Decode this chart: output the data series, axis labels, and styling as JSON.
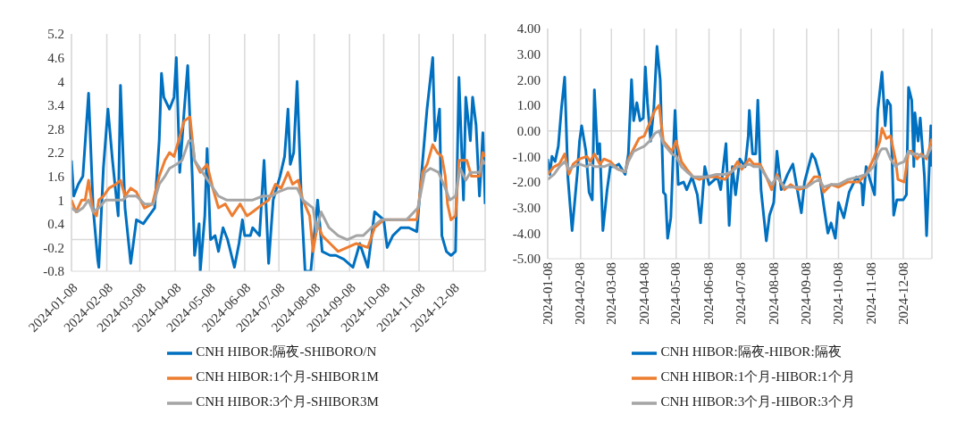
{
  "chart_data": [
    {
      "type": "line",
      "xlim": [
        "2024-01-08",
        "2025-01-05"
      ],
      "xticks": [
        "2024-01-08",
        "2024-02-08",
        "2024-03-08",
        "2024-04-08",
        "2024-05-08",
        "2024-06-08",
        "2024-07-08",
        "2024-08-08",
        "2024-09-08",
        "2024-10-08",
        "2024-11-08",
        "2024-12-08"
      ],
      "ylim": [
        -0.8,
        5.2
      ],
      "yticks": [
        -0.8,
        -0.2,
        0.4,
        1,
        1.6,
        2.2,
        2.8,
        3.4,
        4,
        4.6,
        5.2
      ],
      "grid": "x",
      "legend": "bottom",
      "line_style": "solid",
      "ref_lines": [
        {
          "axis": "y",
          "value": 0,
          "color": "#d9d9d9"
        }
      ],
      "series": [
        {
          "name": "CNH HIBOR:隔夜-SHIBORO/N",
          "color": "#0070c0",
          "x": [
            "2024-01-08",
            "2024-01-10",
            "2024-01-14",
            "2024-01-18",
            "2024-01-23",
            "2024-01-27",
            "2024-01-31",
            "2024-02-01",
            "2024-02-05",
            "2024-02-09",
            "2024-02-13",
            "2024-02-18",
            "2024-02-20",
            "2024-02-24",
            "2024-02-29",
            "2024-03-05",
            "2024-03-11",
            "2024-03-16",
            "2024-03-21",
            "2024-03-25",
            "2024-03-27",
            "2024-03-29",
            "2024-04-03",
            "2024-04-07",
            "2024-04-09",
            "2024-04-11",
            "2024-04-12",
            "2024-04-16",
            "2024-04-19",
            "2024-04-23",
            "2024-04-25",
            "2024-04-29",
            "2024-04-30",
            "2024-05-04",
            "2024-05-06",
            "2024-05-09",
            "2024-05-13",
            "2024-05-16",
            "2024-05-20",
            "2024-05-24",
            "2024-05-30",
            "2024-06-03",
            "2024-06-06",
            "2024-06-08",
            "2024-06-13",
            "2024-06-15",
            "2024-06-21",
            "2024-06-25",
            "2024-06-29",
            "2024-07-03",
            "2024-07-09",
            "2024-07-13",
            "2024-07-16",
            "2024-07-18",
            "2024-07-21",
            "2024-07-24",
            "2024-07-28",
            "2024-07-31",
            "2024-08-05",
            "2024-08-11",
            "2024-08-15",
            "2024-08-22",
            "2024-08-27",
            "2024-09-03",
            "2024-09-11",
            "2024-09-17",
            "2024-09-24",
            "2024-09-30",
            "2024-10-08",
            "2024-10-11",
            "2024-10-16",
            "2024-10-23",
            "2024-10-30",
            "2024-11-06",
            "2024-11-10",
            "2024-11-15",
            "2024-11-20",
            "2024-11-22",
            "2024-11-26",
            "2024-11-28",
            "2024-12-02",
            "2024-12-06",
            "2024-12-10",
            "2024-12-13",
            "2024-12-17",
            "2024-12-19",
            "2024-12-23",
            "2024-12-25",
            "2024-12-28",
            "2024-12-31",
            "2025-01-03",
            "2025-01-05"
          ],
          "values": [
            2.0,
            1.1,
            1.4,
            1.6,
            3.7,
            0.8,
            -0.5,
            -0.7,
            1.8,
            3.3,
            2.0,
            0.6,
            3.9,
            0.8,
            -0.6,
            0.5,
            0.4,
            0.6,
            0.8,
            2.5,
            4.2,
            3.6,
            3.3,
            3.6,
            4.6,
            2.7,
            1.7,
            3.3,
            4.4,
            1.6,
            -0.4,
            0.4,
            -0.8,
            0.6,
            2.3,
            0.0,
            0.1,
            -0.3,
            0.3,
            0.0,
            -0.7,
            -0.1,
            0.5,
            0.1,
            0.1,
            0.3,
            0.1,
            2.0,
            -0.6,
            1.0,
            1.6,
            2.1,
            3.3,
            1.9,
            2.2,
            4.0,
            0.8,
            -0.8,
            -0.8,
            1.0,
            -0.3,
            -0.4,
            -0.4,
            -0.5,
            -0.7,
            -0.1,
            -0.7,
            0.7,
            0.5,
            -0.2,
            0.1,
            0.3,
            0.3,
            0.2,
            1.6,
            3.3,
            4.6,
            2.5,
            3.3,
            0.1,
            -0.3,
            -0.4,
            -0.3,
            4.1,
            1.0,
            3.6,
            2.5,
            3.6,
            2.9,
            1.1,
            2.7,
            0.9
          ]
        },
        {
          "name": "CNH HIBOR:1个月-SHIBOR1M",
          "color": "#ed7d31",
          "x": [
            "2024-01-08",
            "2024-01-12",
            "2024-01-17",
            "2024-01-20",
            "2024-01-23",
            "2024-01-27",
            "2024-01-30",
            "2024-02-01",
            "2024-02-05",
            "2024-02-10",
            "2024-02-16",
            "2024-02-20",
            "2024-02-24",
            "2024-02-29",
            "2024-03-05",
            "2024-03-12",
            "2024-03-19",
            "2024-03-25",
            "2024-03-30",
            "2024-04-03",
            "2024-04-07",
            "2024-04-12",
            "2024-04-16",
            "2024-04-21",
            "2024-04-25",
            "2024-04-30",
            "2024-05-06",
            "2024-05-11",
            "2024-05-16",
            "2024-05-22",
            "2024-05-28",
            "2024-06-04",
            "2024-06-10",
            "2024-06-15",
            "2024-06-24",
            "2024-06-29",
            "2024-07-05",
            "2024-07-10",
            "2024-07-16",
            "2024-07-20",
            "2024-07-25",
            "2024-07-29",
            "2024-08-04",
            "2024-08-07",
            "2024-08-11",
            "2024-08-15",
            "2024-08-22",
            "2024-08-29",
            "2024-09-06",
            "2024-09-14",
            "2024-09-24",
            "2024-09-30",
            "2024-10-08",
            "2024-10-17",
            "2024-10-28",
            "2024-11-06",
            "2024-11-11",
            "2024-11-15",
            "2024-11-20",
            "2024-11-24",
            "2024-11-28",
            "2024-12-01",
            "2024-12-03",
            "2024-12-06",
            "2024-12-10",
            "2024-12-13",
            "2024-12-20",
            "2024-12-24",
            "2024-12-31",
            "2025-01-03",
            "2025-01-05"
          ],
          "values": [
            1.0,
            0.7,
            1.0,
            1.0,
            1.5,
            0.7,
            0.6,
            1.0,
            1.1,
            1.3,
            1.4,
            1.5,
            1.1,
            1.3,
            1.2,
            0.8,
            0.9,
            1.6,
            2.0,
            2.2,
            2.1,
            2.6,
            3.0,
            3.1,
            2.0,
            1.7,
            1.9,
            1.3,
            0.8,
            0.9,
            0.6,
            0.9,
            0.6,
            0.7,
            0.9,
            1.0,
            1.4,
            1.3,
            1.7,
            1.4,
            1.5,
            1.0,
            0.6,
            -0.3,
            0.4,
            0.1,
            -0.1,
            -0.3,
            -0.2,
            -0.1,
            -0.2,
            0.3,
            0.5,
            0.5,
            0.5,
            0.5,
            1.7,
            1.9,
            2.4,
            2.2,
            2.1,
            1.6,
            0.9,
            0.5,
            0.6,
            2.0,
            2.0,
            1.6,
            1.6,
            2.2,
            2.1
          ]
        },
        {
          "name": "CNH HIBOR:3个月-SHIBOR3M",
          "color": "#a5a5a5",
          "x": [
            "2024-01-08",
            "2024-01-13",
            "2024-01-18",
            "2024-01-23",
            "2024-01-27",
            "2024-02-01",
            "2024-02-07",
            "2024-02-15",
            "2024-02-22",
            "2024-02-26",
            "2024-03-05",
            "2024-03-12",
            "2024-03-20",
            "2024-03-25",
            "2024-03-30",
            "2024-04-03",
            "2024-04-09",
            "2024-04-14",
            "2024-04-20",
            "2024-04-23",
            "2024-04-25",
            "2024-05-02",
            "2024-05-09",
            "2024-05-16",
            "2024-05-23",
            "2024-05-30",
            "2024-06-07",
            "2024-06-15",
            "2024-06-24",
            "2024-07-02",
            "2024-07-07",
            "2024-07-16",
            "2024-07-24",
            "2024-07-29",
            "2024-08-07",
            "2024-08-10",
            "2024-08-14",
            "2024-08-21",
            "2024-08-29",
            "2024-09-06",
            "2024-09-14",
            "2024-09-20",
            "2024-09-27",
            "2024-10-06",
            "2024-10-17",
            "2024-10-28",
            "2024-11-07",
            "2024-11-13",
            "2024-11-18",
            "2024-11-25",
            "2024-12-01",
            "2024-12-05",
            "2024-12-10",
            "2024-12-14",
            "2024-12-19",
            "2024-12-23",
            "2024-12-31",
            "2025-01-03",
            "2025-01-05"
          ],
          "values": [
            0.8,
            0.7,
            0.8,
            1.0,
            0.7,
            0.8,
            1.0,
            1.0,
            1.0,
            1.1,
            1.1,
            0.9,
            0.9,
            1.4,
            1.6,
            1.8,
            1.9,
            2.0,
            2.5,
            2.5,
            2.0,
            1.7,
            1.4,
            1.1,
            1.0,
            1.0,
            1.0,
            1.0,
            1.1,
            1.1,
            1.2,
            1.3,
            1.3,
            1.0,
            0.8,
            0.2,
            0.7,
            0.3,
            0.1,
            0.0,
            0.1,
            0.1,
            0.3,
            0.5,
            0.5,
            0.5,
            0.8,
            1.7,
            1.8,
            1.7,
            1.3,
            1.0,
            1.1,
            1.8,
            1.5,
            1.7,
            1.7,
            2.0,
            1.9
          ]
        }
      ]
    },
    {
      "type": "line",
      "xlim": [
        "2024-01-08",
        "2025-01-04"
      ],
      "xticks": [
        "2024-01-08",
        "2024-02-08",
        "2024-03-08",
        "2024-04-08",
        "2024-05-08",
        "2024-06-08",
        "2024-07-08",
        "2024-08-08",
        "2024-09-08",
        "2024-10-08",
        "2024-11-08",
        "2024-12-08"
      ],
      "ylim": [
        -5,
        4
      ],
      "yticks": [
        {
          "value": -5,
          "label": "-5.00"
        },
        {
          "value": -4,
          "label": "-4.00"
        },
        {
          "value": -3,
          "label": "-3.00"
        },
        {
          "value": -2,
          "label": "-2.00"
        },
        {
          "value": -1,
          "label": "-1.00"
        },
        {
          "value": 0,
          "label": "0.00"
        },
        {
          "value": 1,
          "label": "1.00"
        },
        {
          "value": 2,
          "label": "2.00"
        },
        {
          "value": 3,
          "label": "3.00"
        },
        {
          "value": 4,
          "label": "4.00"
        }
      ],
      "grid": "x",
      "legend": "bottom",
      "line_style": "solid",
      "ref_lines": [
        {
          "axis": "y",
          "value": 0,
          "color": "#d9d9d9"
        }
      ],
      "series": [
        {
          "name": "CNH HIBOR:隔夜-HIBOR:隔夜",
          "color": "#0070c0",
          "x": [
            "2024-01-08",
            "2024-01-10",
            "2024-01-12",
            "2024-01-15",
            "2024-01-18",
            "2024-01-21",
            "2024-01-24",
            "2024-01-27",
            "2024-01-31",
            "2024-02-05",
            "2024-02-07",
            "2024-02-09",
            "2024-02-13",
            "2024-02-16",
            "2024-02-19",
            "2024-02-21",
            "2024-02-24",
            "2024-02-26",
            "2024-02-29",
            "2024-03-04",
            "2024-03-07",
            "2024-03-11",
            "2024-03-15",
            "2024-03-21",
            "2024-03-24",
            "2024-03-27",
            "2024-03-29",
            "2024-04-01",
            "2024-04-04",
            "2024-04-07",
            "2024-04-09",
            "2024-04-11",
            "2024-04-14",
            "2024-04-17",
            "2024-04-20",
            "2024-04-23",
            "2024-04-26",
            "2024-04-28",
            "2024-04-30",
            "2024-05-03",
            "2024-05-05",
            "2024-05-07",
            "2024-05-10",
            "2024-05-15",
            "2024-05-18",
            "2024-05-23",
            "2024-05-28",
            "2024-05-31",
            "2024-06-04",
            "2024-06-08",
            "2024-06-16",
            "2024-06-19",
            "2024-06-24",
            "2024-06-27",
            "2024-06-30",
            "2024-07-03",
            "2024-07-07",
            "2024-07-12",
            "2024-07-15",
            "2024-07-16",
            "2024-07-19",
            "2024-07-22",
            "2024-07-24",
            "2024-07-27",
            "2024-08-01",
            "2024-08-04",
            "2024-08-08",
            "2024-08-11",
            "2024-08-15",
            "2024-08-21",
            "2024-08-26",
            "2024-09-03",
            "2024-09-06",
            "2024-09-13",
            "2024-09-16",
            "2024-09-20",
            "2024-09-24",
            "2024-09-28",
            "2024-10-01",
            "2024-10-05",
            "2024-10-08",
            "2024-10-13",
            "2024-10-18",
            "2024-10-25",
            "2024-10-30",
            "2024-10-31",
            "2024-11-03",
            "2024-11-11",
            "2024-11-14",
            "2024-11-18",
            "2024-11-21",
            "2024-11-23",
            "2024-11-26",
            "2024-11-29",
            "2024-12-02",
            "2024-12-08",
            "2024-12-11",
            "2024-12-13",
            "2024-12-16",
            "2024-12-18",
            "2024-12-19",
            "2024-12-22",
            "2024-12-24",
            "2024-12-28",
            "2024-12-30",
            "2025-01-03",
            "2025-01-04"
          ],
          "values": [
            -1.1,
            -1.7,
            -1.0,
            -1.2,
            -0.6,
            0.9,
            2.1,
            -1.8,
            -3.9,
            -1.6,
            -0.4,
            0.2,
            -0.8,
            -2.4,
            -2.7,
            1.6,
            -0.9,
            -0.5,
            -3.9,
            -2.3,
            -1.4,
            -1.4,
            -1.3,
            -1.7,
            -0.9,
            2.0,
            0.4,
            1.1,
            0.4,
            0.5,
            2.5,
            1.1,
            -0.4,
            0.9,
            3.3,
            2.0,
            -2.4,
            -2.5,
            -4.2,
            -3.4,
            -1.2,
            0.8,
            -2.1,
            -2.0,
            -2.3,
            -1.8,
            -2.5,
            -3.6,
            -1.4,
            -2.1,
            -1.8,
            -2.3,
            -0.5,
            -3.7,
            -1.4,
            -2.5,
            -1.1,
            -1.4,
            -0.2,
            0.8,
            -0.9,
            -0.9,
            1.2,
            -2.3,
            -4.3,
            -3.3,
            -2.8,
            -0.8,
            -2.3,
            -1.7,
            -1.3,
            -3.2,
            -2.0,
            -0.9,
            -1.1,
            -1.7,
            -2.9,
            -4.0,
            -3.6,
            -4.2,
            -2.8,
            -3.4,
            -2.4,
            -1.8,
            -2.1,
            -2.9,
            -1.4,
            -2.5,
            0.8,
            2.3,
            0.2,
            1.2,
            1.0,
            -3.3,
            -2.7,
            -2.7,
            -2.5,
            1.7,
            1.2,
            -1.4,
            0.7,
            -0.4,
            0.5,
            -1.8,
            -4.1,
            0.2,
            -1.4
          ]
        },
        {
          "name": "CNH HIBOR:1个月-HIBOR:1个月",
          "color": "#ed7d31",
          "x": [
            "2024-01-08",
            "2024-01-14",
            "2024-01-19",
            "2024-01-24",
            "2024-01-28",
            "2024-02-01",
            "2024-02-07",
            "2024-02-14",
            "2024-02-17",
            "2024-02-21",
            "2024-02-26",
            "2024-03-01",
            "2024-03-07",
            "2024-03-14",
            "2024-03-21",
            "2024-03-24",
            "2024-03-29",
            "2024-04-03",
            "2024-04-08",
            "2024-04-13",
            "2024-04-18",
            "2024-04-22",
            "2024-04-26",
            "2024-04-30",
            "2024-05-04",
            "2024-05-08",
            "2024-05-13",
            "2024-05-18",
            "2024-05-24",
            "2024-05-30",
            "2024-06-06",
            "2024-06-15",
            "2024-06-23",
            "2024-06-29",
            "2024-07-05",
            "2024-07-09",
            "2024-07-16",
            "2024-07-20",
            "2024-07-26",
            "2024-08-01",
            "2024-08-06",
            "2024-08-11",
            "2024-08-18",
            "2024-08-24",
            "2024-08-31",
            "2024-09-08",
            "2024-09-15",
            "2024-09-20",
            "2024-09-24",
            "2024-10-01",
            "2024-10-08",
            "2024-10-17",
            "2024-10-27",
            "2024-11-03",
            "2024-11-10",
            "2024-11-16",
            "2024-11-18",
            "2024-11-22",
            "2024-11-26",
            "2024-12-01",
            "2024-12-03",
            "2024-12-09",
            "2024-12-13",
            "2024-12-16",
            "2024-12-21",
            "2024-12-25",
            "2024-12-30",
            "2025-01-04"
          ],
          "values": [
            -1.7,
            -1.4,
            -1.3,
            -0.9,
            -1.7,
            -1.3,
            -1.1,
            -1.0,
            -1.2,
            -0.9,
            -1.3,
            -1.1,
            -1.2,
            -1.5,
            -1.6,
            -1.1,
            -0.7,
            -0.3,
            -0.2,
            0.3,
            0.8,
            1.0,
            -0.4,
            -0.6,
            -0.8,
            -0.4,
            -1.2,
            -1.5,
            -1.8,
            -1.9,
            -1.8,
            -1.8,
            -1.9,
            -1.6,
            -1.2,
            -1.5,
            -1.1,
            -1.3,
            -1.3,
            -1.8,
            -2.3,
            -1.7,
            -2.3,
            -2.1,
            -2.3,
            -2.2,
            -1.8,
            -1.8,
            -2.4,
            -2.1,
            -2.2,
            -2.0,
            -2.0,
            -1.7,
            -1.1,
            -0.4,
            0.1,
            -0.3,
            -0.2,
            -1.2,
            -1.9,
            -2.0,
            -0.8,
            -0.8,
            -1.1,
            -0.9,
            -1.1,
            -0.3
          ]
        },
        {
          "name": "CNH HIBOR:3个月-HIBOR:3个月",
          "color": "#a5a5a5",
          "x": [
            "2024-01-08",
            "2024-01-14",
            "2024-01-19",
            "2024-01-24",
            "2024-01-28",
            "2024-02-01",
            "2024-02-07",
            "2024-02-14",
            "2024-02-17",
            "2024-02-21",
            "2024-02-26",
            "2024-03-01",
            "2024-03-07",
            "2024-03-14",
            "2024-03-21",
            "2024-03-24",
            "2024-03-29",
            "2024-04-03",
            "2024-04-08",
            "2024-04-13",
            "2024-04-18",
            "2024-04-22",
            "2024-04-26",
            "2024-04-30",
            "2024-05-04",
            "2024-05-08",
            "2024-05-13",
            "2024-05-18",
            "2024-05-24",
            "2024-05-30",
            "2024-06-06",
            "2024-06-15",
            "2024-06-23",
            "2024-06-29",
            "2024-07-05",
            "2024-07-09",
            "2024-07-16",
            "2024-07-20",
            "2024-07-26",
            "2024-08-01",
            "2024-08-06",
            "2024-08-11",
            "2024-08-18",
            "2024-08-24",
            "2024-08-31",
            "2024-09-08",
            "2024-09-15",
            "2024-09-20",
            "2024-09-24",
            "2024-10-01",
            "2024-10-08",
            "2024-10-17",
            "2024-10-27",
            "2024-11-03",
            "2024-11-10",
            "2024-11-16",
            "2024-11-18",
            "2024-11-22",
            "2024-11-26",
            "2024-12-01",
            "2024-12-03",
            "2024-12-09",
            "2024-12-13",
            "2024-12-16",
            "2024-12-21",
            "2024-12-25",
            "2024-12-30",
            "2025-01-04"
          ],
          "values": [
            -1.9,
            -1.7,
            -1.4,
            -1.2,
            -1.5,
            -1.4,
            -1.3,
            -1.4,
            -1.3,
            -1.4,
            -1.4,
            -1.4,
            -1.3,
            -1.5,
            -1.6,
            -1.2,
            -0.8,
            -0.7,
            -0.6,
            -0.4,
            -0.1,
            0.0,
            -0.5,
            -0.7,
            -0.9,
            -1.0,
            -1.4,
            -1.6,
            -1.8,
            -1.8,
            -1.8,
            -1.7,
            -1.7,
            -1.6,
            -1.4,
            -1.4,
            -1.3,
            -1.4,
            -1.4,
            -1.8,
            -2.1,
            -1.8,
            -2.2,
            -2.2,
            -2.2,
            -2.2,
            -2.0,
            -1.9,
            -2.2,
            -2.1,
            -2.1,
            -1.9,
            -1.8,
            -1.7,
            -1.4,
            -0.8,
            -0.7,
            -0.7,
            -1.1,
            -1.4,
            -1.3,
            -1.2,
            -0.8,
            -0.9,
            -0.9,
            -1.0,
            -1.0,
            -0.6
          ]
        }
      ]
    }
  ]
}
